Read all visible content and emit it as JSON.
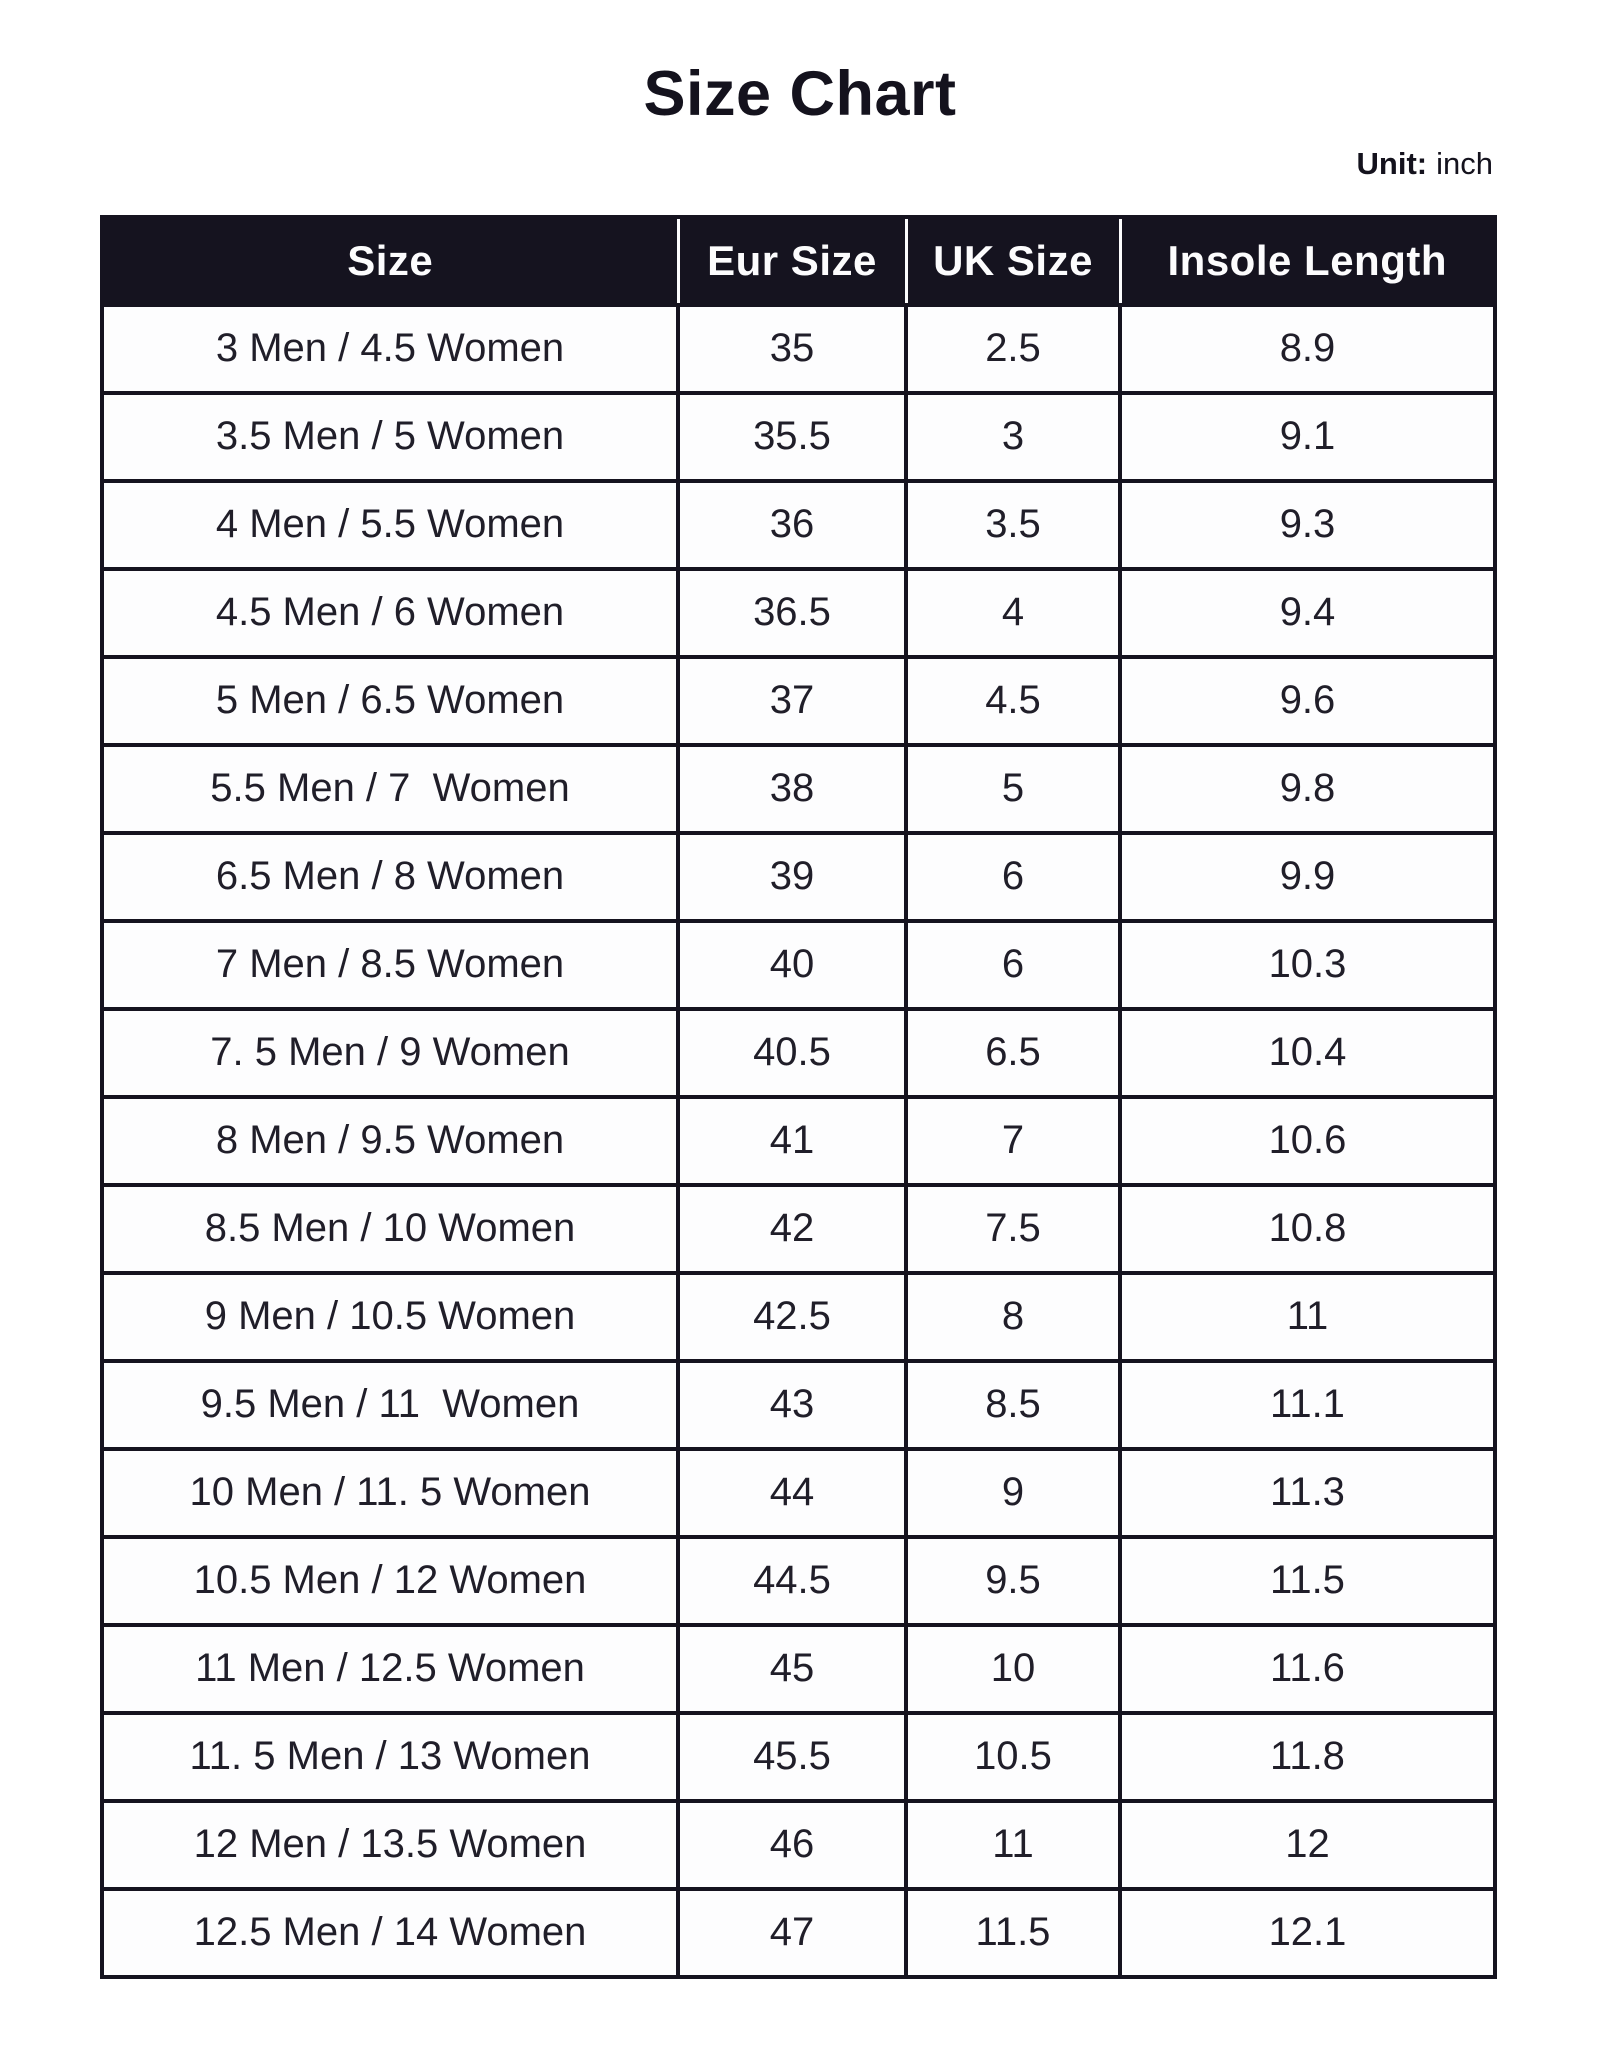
{
  "page": {
    "title": "Size Chart",
    "unit_label": "Unit:",
    "unit_value": "inch"
  },
  "table": {
    "columns": [
      "Size",
      "Eur Size",
      "UK Size",
      "Insole Length"
    ],
    "rows": [
      [
        "3 Men / 4.5 Women",
        "35",
        "2.5",
        "8.9"
      ],
      [
        "3.5 Men / 5 Women",
        "35.5",
        "3",
        "9.1"
      ],
      [
        "4 Men / 5.5 Women",
        "36",
        "3.5",
        "9.3"
      ],
      [
        "4.5 Men / 6 Women",
        "36.5",
        "4",
        "9.4"
      ],
      [
        "5 Men / 6.5 Women",
        "37",
        "4.5",
        "9.6"
      ],
      [
        "5.5 Men / 7  Women",
        "38",
        "5",
        "9.8"
      ],
      [
        "6.5 Men / 8 Women",
        "39",
        "6",
        "9.9"
      ],
      [
        "7 Men / 8.5 Women",
        "40",
        "6",
        "10.3"
      ],
      [
        "7. 5 Men / 9 Women",
        "40.5",
        "6.5",
        "10.4"
      ],
      [
        "8 Men / 9.5 Women",
        "41",
        "7",
        "10.6"
      ],
      [
        "8.5 Men / 10 Women",
        "42",
        "7.5",
        "10.8"
      ],
      [
        "9 Men / 10.5 Women",
        "42.5",
        "8",
        "11"
      ],
      [
        "9.5 Men / 11  Women",
        "43",
        "8.5",
        "11.1"
      ],
      [
        "10 Men / 11. 5 Women",
        "44",
        "9",
        "11.3"
      ],
      [
        "10.5 Men / 12 Women",
        "44.5",
        "9.5",
        "11.5"
      ],
      [
        "11 Men / 12.5 Women",
        "45",
        "10",
        "11.6"
      ],
      [
        "11. 5 Men / 13 Women",
        "45.5",
        "10.5",
        "11.8"
      ],
      [
        "12 Men / 13.5 Women",
        "46",
        "11",
        "12"
      ],
      [
        "12.5 Men / 14 Women",
        "47",
        "11.5",
        "12.1"
      ]
    ]
  },
  "colors": {
    "header_background": "#15131F",
    "header_text": "#FCFCFD",
    "body_text": "#201E29",
    "border": "#15131F",
    "cell_background": "#FDFDFE",
    "page_background": "#FFFFFF"
  }
}
